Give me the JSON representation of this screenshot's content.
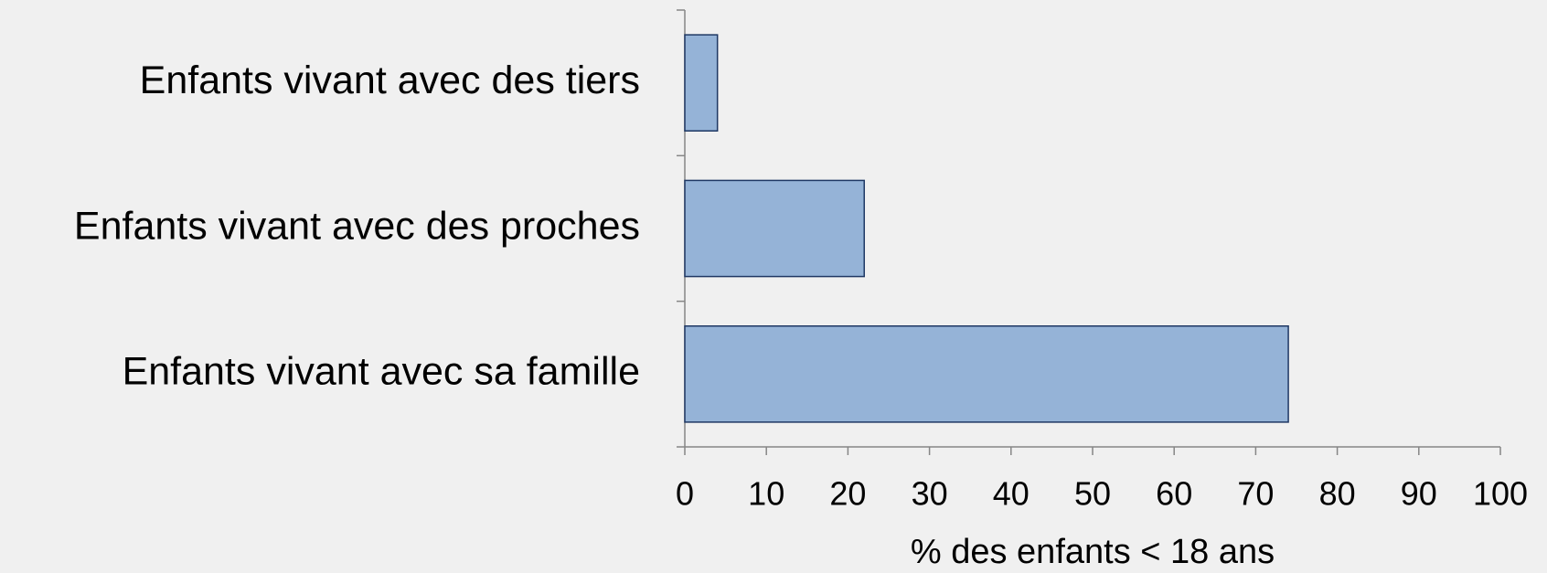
{
  "chart_data": {
    "type": "bar",
    "orientation": "horizontal",
    "categories": [
      "Enfants vivant avec des tiers",
      "Enfants vivant avec des proches",
      "Enfants vivant avec sa famille"
    ],
    "values": [
      4,
      22,
      74
    ],
    "color": "#95b3d7",
    "xlabel": "% des enfants < 18 ans",
    "xlim": [
      0,
      100
    ],
    "xticks": [
      0,
      10,
      20,
      30,
      40,
      50,
      60,
      70,
      80,
      90,
      100
    ],
    "grid": false
  }
}
